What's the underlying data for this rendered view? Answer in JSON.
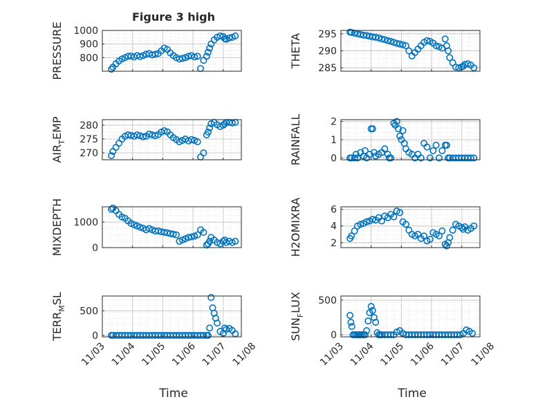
{
  "figure": {
    "title": "Figure 3 high",
    "marker_color": "#0072BD"
  },
  "chart_data": [
    {
      "type": "scatter",
      "id": "pressure",
      "ylabel": "PRESSURE",
      "ylabel_sub": "",
      "yticks": [
        800,
        900,
        1000
      ],
      "ylim": [
        700,
        1000
      ],
      "xlim": [
        0,
        4.6
      ],
      "xtick_positions": [
        0,
        1,
        2,
        3,
        4,
        5
      ],
      "xtick_labels": [
        "11/03",
        "11/04",
        "11/05",
        "11/06",
        "11/07",
        "11/08"
      ],
      "grid": true,
      "x": [
        0.3,
        0.35,
        0.45,
        0.55,
        0.65,
        0.75,
        0.85,
        0.95,
        1.05,
        1.15,
        1.25,
        1.35,
        1.45,
        1.55,
        1.65,
        1.75,
        1.85,
        1.95,
        2.05,
        2.15,
        2.25,
        2.35,
        2.45,
        2.55,
        2.65,
        2.75,
        2.85,
        2.95,
        3.05,
        3.15,
        3.25,
        3.35,
        3.45,
        3.5,
        3.55,
        3.6,
        3.7,
        3.8,
        3.9,
        4.0,
        4.05,
        4.1,
        4.2,
        4.3,
        4.4
      ],
      "y": [
        715,
        730,
        755,
        775,
        790,
        800,
        810,
        812,
        805,
        815,
        808,
        815,
        825,
        830,
        820,
        825,
        830,
        850,
        870,
        860,
        835,
        815,
        800,
        790,
        795,
        800,
        810,
        815,
        805,
        810,
        720,
        780,
        810,
        840,
        870,
        900,
        930,
        950,
        960,
        955,
        940,
        935,
        945,
        950,
        960
      ]
    },
    {
      "type": "scatter",
      "id": "theta",
      "ylabel": "THETA",
      "ylabel_sub": "",
      "yticks": [
        285,
        290,
        295
      ],
      "ylim": [
        284,
        296
      ],
      "xlim": [
        0,
        4.6
      ],
      "xtick_positions": [
        0,
        1,
        2,
        3,
        4,
        5
      ],
      "xtick_labels": [
        "11/03",
        "11/04",
        "11/05",
        "11/06",
        "11/07",
        "11/08"
      ],
      "grid": true,
      "x": [
        0.3,
        0.35,
        0.45,
        0.55,
        0.65,
        0.75,
        0.85,
        0.95,
        1.05,
        1.15,
        1.25,
        1.35,
        1.45,
        1.55,
        1.65,
        1.75,
        1.85,
        1.95,
        2.05,
        2.15,
        2.25,
        2.35,
        2.45,
        2.55,
        2.65,
        2.75,
        2.85,
        2.95,
        3.05,
        3.15,
        3.25,
        3.35,
        3.45,
        3.5,
        3.55,
        3.6,
        3.7,
        3.8,
        3.9,
        4.0,
        4.05,
        4.1,
        4.2,
        4.3,
        4.4
      ],
      "y": [
        295.5,
        295.4,
        295.2,
        295,
        294.8,
        294.6,
        294.5,
        294.3,
        294.1,
        294,
        293.8,
        293.5,
        293.3,
        293,
        292.8,
        292.5,
        292.2,
        292,
        291.8,
        291.5,
        290,
        288.5,
        289.5,
        290.5,
        291.5,
        292.5,
        293,
        292.8,
        292.3,
        291.5,
        291.2,
        290.8,
        293.5,
        291.5,
        290,
        288,
        286.5,
        285.2,
        285,
        285.3,
        285.5,
        286,
        286.2,
        285.8,
        285
      ]
    },
    {
      "type": "scatter",
      "id": "air_temp",
      "ylabel": "AIR",
      "ylabel_sub": "T",
      "ylabel_suffix": "EMP",
      "yticks": [
        270,
        275,
        280
      ],
      "ylim": [
        267.5,
        282
      ],
      "xlim": [
        0,
        4.6
      ],
      "xtick_positions": [
        0,
        1,
        2,
        3,
        4,
        5
      ],
      "xtick_labels": [
        "11/03",
        "11/04",
        "11/05",
        "11/06",
        "11/07",
        "11/08"
      ],
      "grid": true,
      "x": [
        0.3,
        0.35,
        0.45,
        0.55,
        0.65,
        0.75,
        0.85,
        0.95,
        1.05,
        1.15,
        1.25,
        1.35,
        1.45,
        1.55,
        1.65,
        1.75,
        1.85,
        1.95,
        2.05,
        2.15,
        2.25,
        2.35,
        2.45,
        2.55,
        2.65,
        2.75,
        2.85,
        2.95,
        3.05,
        3.15,
        3.25,
        3.35,
        3.45,
        3.5,
        3.55,
        3.6,
        3.7,
        3.8,
        3.9,
        4.0,
        4.05,
        4.1,
        4.2,
        4.3,
        4.4
      ],
      "y": [
        269,
        270.5,
        272,
        273.5,
        275,
        276,
        276.5,
        276.3,
        276,
        276.5,
        276.2,
        275.8,
        276,
        276.8,
        276.5,
        276.2,
        276.6,
        277.5,
        278,
        277.6,
        276.5,
        275.5,
        274.8,
        274,
        274.5,
        275,
        274.3,
        274.8,
        274.5,
        274,
        268.5,
        270,
        276.5,
        277.5,
        279,
        280.5,
        281,
        280.2,
        279.5,
        280,
        280.5,
        281,
        281,
        280.8,
        281
      ]
    },
    {
      "type": "scatter",
      "id": "rainfall",
      "ylabel": "RAINFALL",
      "ylabel_sub": "",
      "yticks": [
        0,
        1,
        2
      ],
      "ylim": [
        -0.1,
        2.1
      ],
      "xlim": [
        0,
        4.6
      ],
      "xtick_positions": [
        0,
        1,
        2,
        3,
        4,
        5
      ],
      "xtick_labels": [
        "11/03",
        "11/04",
        "11/05",
        "11/06",
        "11/07",
        "11/08"
      ],
      "grid": true,
      "x": [
        0.3,
        0.35,
        0.45,
        0.5,
        0.55,
        0.65,
        0.75,
        0.8,
        0.85,
        0.95,
        1.0,
        1.05,
        1.1,
        1.15,
        1.25,
        1.35,
        1.45,
        1.55,
        1.6,
        1.65,
        1.75,
        1.8,
        1.85,
        1.9,
        1.95,
        2.0,
        2.05,
        2.1,
        2.15,
        2.25,
        2.35,
        2.45,
        2.55,
        2.65,
        2.75,
        2.85,
        2.95,
        3.05,
        3.15,
        3.25,
        3.35,
        3.45,
        3.5,
        3.55,
        3.6,
        3.7,
        3.8,
        3.9,
        4.0,
        4.1,
        4.2,
        4.3,
        4.4
      ],
      "y": [
        0,
        0,
        0,
        0.2,
        0,
        0.3,
        0.1,
        0.4,
        0,
        0.2,
        1.6,
        1.6,
        0.3,
        0.1,
        0.2,
        0.3,
        0.5,
        0.2,
        0,
        0,
        1.9,
        1.8,
        2.0,
        1.6,
        1.2,
        1.0,
        1.5,
        0.8,
        0.5,
        0.3,
        0.2,
        0,
        0.2,
        0,
        0.8,
        0.6,
        0,
        0.4,
        0.7,
        0,
        0.4,
        0.7,
        0.7,
        0,
        0,
        0,
        0,
        0,
        0,
        0,
        0,
        0,
        0
      ]
    },
    {
      "type": "scatter",
      "id": "mixdepth",
      "ylabel": "MIXDEPTH",
      "ylabel_sub": "",
      "yticks": [
        0,
        1000
      ],
      "ylim": [
        0,
        1600
      ],
      "xlim": [
        0,
        4.6
      ],
      "xtick_positions": [
        0,
        1,
        2,
        3,
        4,
        5
      ],
      "xtick_labels": [
        "11/03",
        "11/04",
        "11/05",
        "11/06",
        "11/07",
        "11/08"
      ],
      "grid": true,
      "x": [
        0.3,
        0.35,
        0.45,
        0.55,
        0.65,
        0.75,
        0.85,
        0.95,
        1.05,
        1.15,
        1.25,
        1.35,
        1.45,
        1.55,
        1.65,
        1.75,
        1.85,
        1.95,
        2.05,
        2.15,
        2.25,
        2.35,
        2.45,
        2.55,
        2.65,
        2.75,
        2.85,
        2.95,
        3.05,
        3.15,
        3.25,
        3.35,
        3.45,
        3.5,
        3.55,
        3.6,
        3.7,
        3.8,
        3.9,
        4.0,
        4.05,
        4.1,
        4.2,
        4.3,
        4.4
      ],
      "y": [
        1500,
        1550,
        1450,
        1300,
        1200,
        1150,
        1050,
        950,
        900,
        850,
        800,
        760,
        700,
        750,
        700,
        650,
        660,
        620,
        600,
        580,
        550,
        530,
        500,
        250,
        300,
        350,
        400,
        420,
        450,
        500,
        700,
        600,
        100,
        150,
        250,
        400,
        300,
        200,
        150,
        250,
        300,
        200,
        250,
        200,
        250
      ]
    },
    {
      "type": "scatter",
      "id": "h2omixra",
      "ylabel": "H2OMIXRA",
      "ylabel_sub": "",
      "yticks": [
        2,
        4,
        6
      ],
      "ylim": [
        1.4,
        6.3
      ],
      "xlim": [
        0,
        4.6
      ],
      "xtick_positions": [
        0,
        1,
        2,
        3,
        4,
        5
      ],
      "xtick_labels": [
        "11/03",
        "11/04",
        "11/05",
        "11/06",
        "11/07",
        "11/08"
      ],
      "grid": true,
      "x": [
        0.3,
        0.35,
        0.45,
        0.55,
        0.65,
        0.75,
        0.85,
        0.95,
        1.05,
        1.15,
        1.25,
        1.35,
        1.45,
        1.55,
        1.65,
        1.75,
        1.85,
        1.95,
        2.05,
        2.15,
        2.25,
        2.35,
        2.45,
        2.55,
        2.65,
        2.75,
        2.85,
        2.95,
        3.05,
        3.15,
        3.25,
        3.35,
        3.45,
        3.5,
        3.55,
        3.6,
        3.7,
        3.8,
        3.9,
        4.0,
        4.05,
        4.1,
        4.2,
        4.3,
        4.4
      ],
      "y": [
        2.5,
        2.8,
        3.4,
        4.0,
        4.2,
        4.3,
        4.5,
        4.6,
        4.8,
        4.7,
        5.0,
        4.6,
        5.2,
        5.0,
        5.4,
        5.1,
        5.8,
        5.6,
        4.5,
        4.2,
        3.5,
        3.0,
        2.8,
        3.0,
        2.5,
        2.8,
        2.2,
        2.4,
        3.2,
        3.0,
        2.8,
        3.4,
        1.8,
        1.6,
        2.0,
        2.6,
        3.5,
        4.2,
        4.0,
        3.8,
        3.6,
        3.9,
        3.5,
        3.7,
        4.0
      ]
    },
    {
      "type": "scatter",
      "id": "terr_msl",
      "ylabel": "TERR",
      "ylabel_sub": "M",
      "ylabel_suffix": "SL",
      "yticks": [
        0,
        500
      ],
      "ylim": [
        -30,
        800
      ],
      "xlim": [
        0,
        4.6
      ],
      "xtick_positions": [
        0,
        1,
        2,
        3,
        4,
        5
      ],
      "xtick_labels": [
        "11/03",
        "11/04",
        "11/05",
        "11/06",
        "11/07",
        "11/08"
      ],
      "grid": true,
      "x": [
        0.3,
        0.35,
        0.45,
        0.55,
        0.65,
        0.75,
        0.85,
        0.95,
        1.05,
        1.15,
        1.25,
        1.35,
        1.45,
        1.55,
        1.65,
        1.75,
        1.85,
        1.95,
        2.05,
        2.15,
        2.25,
        2.35,
        2.45,
        2.55,
        2.65,
        2.75,
        2.85,
        2.95,
        3.05,
        3.15,
        3.25,
        3.35,
        3.45,
        3.5,
        3.55,
        3.6,
        3.65,
        3.7,
        3.75,
        3.8,
        3.9,
        4.0,
        4.05,
        4.1,
        4.2,
        4.3,
        4.4
      ],
      "y": [
        0,
        0,
        0,
        0,
        0,
        0,
        0,
        0,
        0,
        0,
        0,
        0,
        0,
        0,
        0,
        0,
        0,
        0,
        0,
        0,
        0,
        0,
        0,
        0,
        0,
        0,
        0,
        0,
        0,
        0,
        0,
        0,
        0,
        0,
        150,
        770,
        560,
        450,
        350,
        250,
        80,
        40,
        150,
        120,
        140,
        100,
        30
      ]
    },
    {
      "type": "scatter",
      "id": "sun_flux",
      "ylabel": "SUN",
      "ylabel_sub": "F",
      "ylabel_suffix": "LUX",
      "yticks": [
        0,
        500
      ],
      "ylim": [
        -30,
        560
      ],
      "xlim": [
        0,
        4.6
      ],
      "xtick_positions": [
        0,
        1,
        2,
        3,
        4,
        5
      ],
      "xtick_labels": [
        "11/03",
        "11/04",
        "11/05",
        "11/06",
        "11/07",
        "11/08"
      ],
      "grid": true,
      "x": [
        0.3,
        0.33,
        0.36,
        0.4,
        0.45,
        0.5,
        0.55,
        0.6,
        0.65,
        0.7,
        0.75,
        0.8,
        0.85,
        0.9,
        0.95,
        1.0,
        1.05,
        1.1,
        1.15,
        1.2,
        1.25,
        1.3,
        1.35,
        1.45,
        1.55,
        1.65,
        1.75,
        1.85,
        1.95,
        2.05,
        2.15,
        2.25,
        2.35,
        2.45,
        2.55,
        2.65,
        2.75,
        2.85,
        2.95,
        3.05,
        3.15,
        3.25,
        3.35,
        3.45,
        3.55,
        3.65,
        3.75,
        3.85,
        3.95,
        4.05,
        4.15,
        4.25,
        4.35
      ],
      "y": [
        280,
        180,
        120,
        0,
        0,
        0,
        0,
        0,
        0,
        0,
        0,
        0,
        60,
        200,
        320,
        410,
        350,
        250,
        180,
        30,
        0,
        0,
        0,
        0,
        0,
        0,
        0,
        40,
        60,
        20,
        0,
        0,
        0,
        0,
        0,
        0,
        0,
        0,
        0,
        0,
        0,
        0,
        0,
        0,
        0,
        0,
        0,
        0,
        0,
        20,
        70,
        50,
        20
      ]
    }
  ],
  "axes_labels": {
    "xlabel_left": "Time",
    "xlabel_right": "Time"
  }
}
